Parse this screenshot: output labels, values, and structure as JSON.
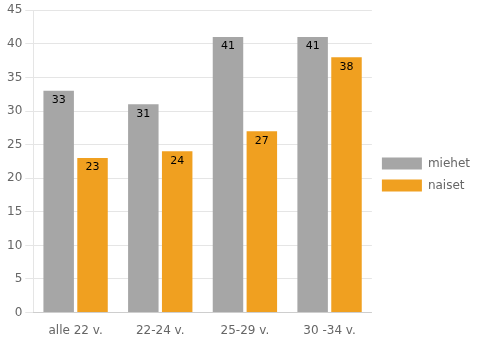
{
  "chart_data": {
    "type": "bar",
    "categories": [
      "alle 22 v.",
      "22-24 v.",
      "25-29 v.",
      "30 -34 v."
    ],
    "series": [
      {
        "name": "miehet",
        "color": "#a6a6a6",
        "values": [
          33,
          31,
          41,
          41
        ]
      },
      {
        "name": "naiset",
        "color": "#f0a020",
        "values": [
          23,
          24,
          27,
          38
        ]
      }
    ],
    "ylim": [
      0,
      45
    ],
    "yticks": [
      0,
      5,
      10,
      15,
      20,
      25,
      30,
      35,
      40,
      45
    ],
    "grid": true,
    "legend": "right",
    "data_labels": true
  }
}
